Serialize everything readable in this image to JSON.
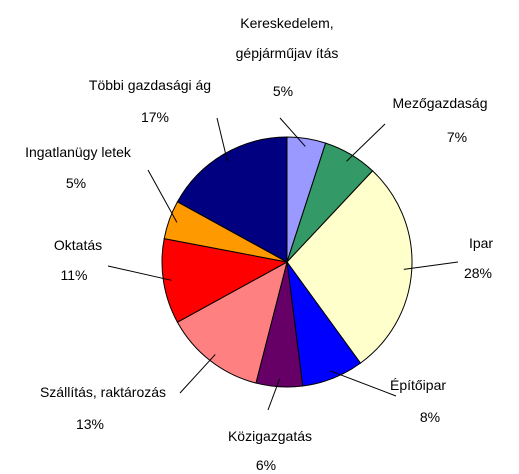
{
  "chart_data": {
    "type": "pie",
    "categories": [
      "Kereskedelem, gépjárműjav ítás",
      "Mezőgazdaság",
      "Ipar",
      "Építőipar",
      "Közigazgatás",
      "Szállítás, raktározás",
      "Oktatás",
      "Ingatlanügy letek",
      "Többi gazdasági ág"
    ],
    "values": [
      5,
      7,
      28,
      8,
      6,
      13,
      11,
      5,
      17
    ],
    "value_labels": [
      "5%",
      "7%",
      "28%",
      "8%",
      "6%",
      "13%",
      "11%",
      "5%",
      "17%"
    ],
    "colors": [
      "#9999ff",
      "#339966",
      "#ffffcc",
      "#0000ff",
      "#660066",
      "#ff8080",
      "#ff0000",
      "#ff9900",
      "#000080"
    ]
  }
}
